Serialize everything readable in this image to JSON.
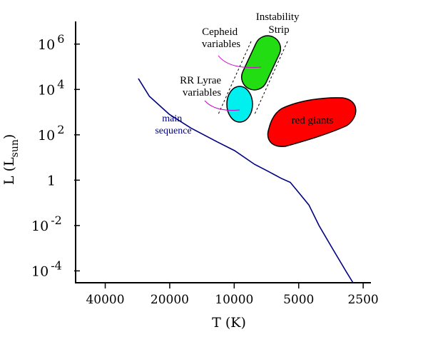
{
  "chart_data": {
    "type": "line",
    "title": "",
    "xlabel": "T (K)",
    "ylabel": "L (L",
    "ylabel_sub": "sun",
    "ylabel_close": ")",
    "x_scale": "log-reversed",
    "y_scale": "log",
    "xlim": [
      55000,
      2300
    ],
    "ylim": [
      3e-05,
      10000000
    ],
    "x_ticks": [
      {
        "value": 40000,
        "label": "40000"
      },
      {
        "value": 20000,
        "label": "20000"
      },
      {
        "value": 10000,
        "label": "10000"
      },
      {
        "value": 5000,
        "label": "5000"
      },
      {
        "value": 2500,
        "label": "2500"
      }
    ],
    "y_ticks": [
      {
        "value": 1000000,
        "base": "10",
        "exp": "6"
      },
      {
        "value": 10000,
        "base": "10",
        "exp": "4"
      },
      {
        "value": 100,
        "base": "10",
        "exp": "2"
      },
      {
        "value": 1,
        "base": "1",
        "exp": ""
      },
      {
        "value": 0.01,
        "base": "10",
        "exp": "-2"
      },
      {
        "value": 0.0001,
        "base": "10",
        "exp": "-4"
      }
    ],
    "series": [
      {
        "label": "main sequence",
        "color": "#000080",
        "points": [
          [
            28000,
            30000
          ],
          [
            25000,
            5000
          ],
          [
            20000,
            800
          ],
          [
            16000,
            200
          ],
          [
            12000,
            50
          ],
          [
            10000,
            20
          ],
          [
            8000,
            5
          ],
          [
            7000,
            2.5
          ],
          [
            6000,
            1.2
          ],
          [
            5500,
            0.8
          ],
          [
            5000,
            0.3
          ],
          [
            4500,
            0.08
          ],
          [
            4000,
            0.01
          ],
          [
            3500,
            0.001
          ],
          [
            3000,
            0.0001
          ],
          [
            2800,
            3e-05
          ]
        ]
      }
    ],
    "regions": [
      {
        "label": "Instability Strip",
        "lines": [
          "Instability",
          "Strip"
        ],
        "kind": "band"
      },
      {
        "label": "Cepheid variables",
        "lines": [
          "Cepheid",
          "variables"
        ],
        "color": "#22dd11",
        "kind": "capsule"
      },
      {
        "label": "RR Lyrae variables",
        "lines": [
          "RR Lyrae",
          "variables"
        ],
        "color": "#00f0f0",
        "kind": "ellipse"
      },
      {
        "label": "red giants",
        "lines": [
          "red giants"
        ],
        "color": "#ff0000",
        "kind": "blob"
      }
    ]
  }
}
